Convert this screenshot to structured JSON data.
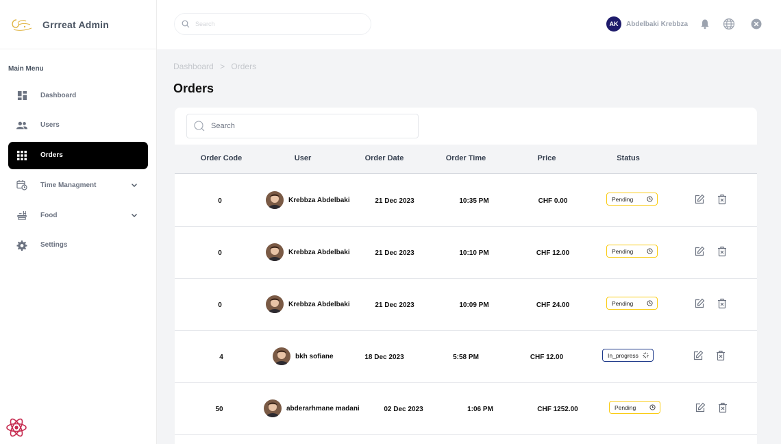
{
  "brand": {
    "title": "Grrreat Admin"
  },
  "sidebar": {
    "heading": "Main Menu",
    "items": [
      {
        "label": "Dashboard",
        "icon": "dashboard-icon"
      },
      {
        "label": "Users",
        "icon": "users-icon"
      },
      {
        "label": "Orders",
        "icon": "grid-icon",
        "active": true
      },
      {
        "label": "Time Managment",
        "icon": "calendar-clock-icon",
        "expandable": true
      },
      {
        "label": "Food",
        "icon": "food-icon",
        "expandable": true
      },
      {
        "label": "Settings",
        "icon": "gear-icon"
      }
    ]
  },
  "topbar": {
    "search_placeholder": "Search",
    "user_initials": "AK",
    "user_name": "Abdelbaki Krebbza"
  },
  "breadcrumb": {
    "items": [
      "Dashboard",
      ">",
      "Orders"
    ]
  },
  "page": {
    "title": "Orders"
  },
  "table": {
    "search_placeholder": "Search",
    "columns": [
      "Order Code",
      "User",
      "Order Date",
      "Order Time",
      "Price",
      "Status"
    ],
    "rows": [
      {
        "code": "0",
        "user": "Krebbza Abdelbaki",
        "date": "21 Dec 2023",
        "time": "10:35 PM",
        "price": "CHF 0.00",
        "status": "Pending"
      },
      {
        "code": "0",
        "user": "Krebbza Abdelbaki",
        "date": "21 Dec 2023",
        "time": "10:10 PM",
        "price": "CHF 12.00",
        "status": "Pending"
      },
      {
        "code": "0",
        "user": "Krebbza Abdelbaki",
        "date": "21 Dec 2023",
        "time": "10:09 PM",
        "price": "CHF 24.00",
        "status": "Pending"
      },
      {
        "code": "4",
        "user": "bkh sofiane",
        "date": "18 Dec 2023",
        "time": "5:58 PM",
        "price": "CHF 12.00",
        "status": "In_progress"
      },
      {
        "code": "50",
        "user": "abderarhmane madani",
        "date": "02 Dec 2023",
        "time": "1:06 PM",
        "price": "CHF 1252.00",
        "status": "Pending"
      }
    ]
  },
  "colors": {
    "active_menu_bg": "#000000",
    "pending_border": "#facc15",
    "progress_border": "#1e3a8a",
    "avatar_bg": "#1e1b6b"
  }
}
